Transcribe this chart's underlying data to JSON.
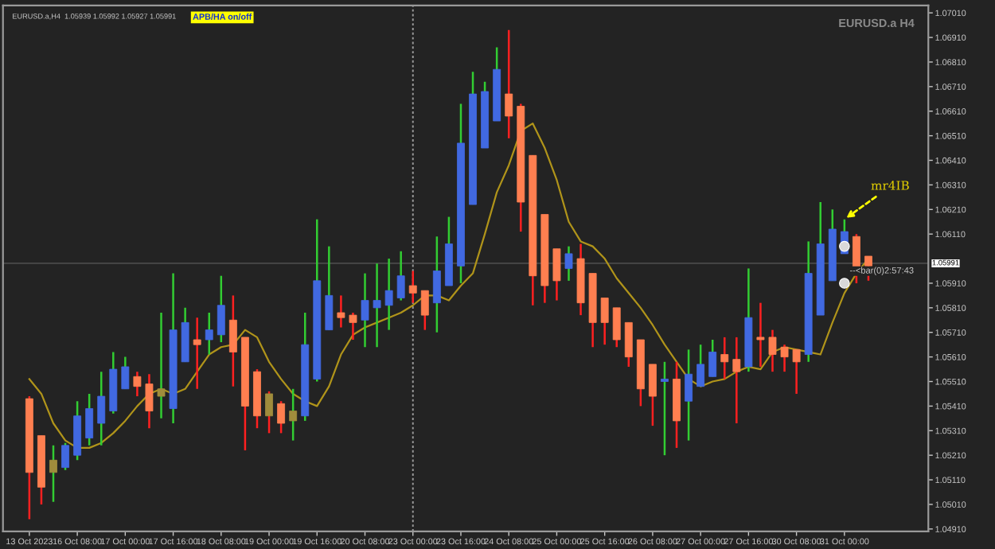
{
  "chart_data": {
    "type": "candlestick",
    "categories": [
      "13 Oct 2023",
      null,
      null,
      null,
      "16 Oct 08:00",
      null,
      null,
      null,
      "17 Oct 00:00",
      null,
      null,
      null,
      "17 Oct 16:00",
      null,
      null,
      null,
      "18 Oct 08:00",
      null,
      null,
      null,
      "19 Oct 00:00",
      null,
      null,
      null,
      "19 Oct 16:00",
      null,
      null,
      null,
      "20 Oct 08:00",
      null,
      null,
      null,
      "23 Oct 00:00",
      null,
      null,
      null,
      "23 Oct 16:00",
      null,
      null,
      null,
      "24 Oct 08:00",
      null,
      null,
      null,
      "25 Oct 00:00",
      null,
      null,
      null,
      "25 Oct 16:00",
      null,
      null,
      null,
      "26 Oct 08:00",
      null,
      null,
      null,
      "27 Oct 00:00",
      null,
      null,
      null,
      "27 Oct 16:00",
      null,
      null,
      null,
      "30 Oct 08:00",
      null,
      null,
      null,
      "31 Oct 00:00",
      null,
      null
    ],
    "ohlc": [
      [
        1.0544,
        1.0545,
        1.0495,
        1.0514
      ],
      [
        1.0529,
        1.0529,
        1.0501,
        1.0508
      ],
      [
        1.0514,
        1.0525,
        1.0502,
        1.0519
      ],
      [
        1.0516,
        1.0526,
        1.0515,
        1.0525
      ],
      [
        1.0521,
        1.0543,
        1.0519,
        1.0537
      ],
      [
        1.0528,
        1.0546,
        1.0525,
        1.054
      ],
      [
        1.0534,
        1.0555,
        1.0525,
        1.0545
      ],
      [
        1.0539,
        1.0563,
        1.0538,
        1.0556
      ],
      [
        1.0548,
        1.0561,
        1.0548,
        1.0557
      ],
      [
        1.0553,
        1.0555,
        1.0545,
        1.0549
      ],
      [
        1.055,
        1.0554,
        1.0532,
        1.0539
      ],
      [
        1.0545,
        1.0579,
        1.0536,
        1.0548
      ],
      [
        1.054,
        1.0595,
        1.0534,
        1.0572
      ],
      [
        1.0559,
        1.0581,
        1.0559,
        1.0575
      ],
      [
        1.0568,
        1.0577,
        1.0548,
        1.0566
      ],
      [
        1.0568,
        1.0579,
        1.0562,
        1.0572
      ],
      [
        1.057,
        1.0594,
        1.0567,
        1.0582
      ],
      [
        1.0576,
        1.0586,
        1.0549,
        1.0563
      ],
      [
        1.0569,
        1.0569,
        1.0523,
        1.0541
      ],
      [
        1.0555,
        1.0556,
        1.0532,
        1.0537
      ],
      [
        1.0546,
        1.0547,
        1.053,
        1.0537
      ],
      [
        1.0542,
        1.0543,
        1.053,
        1.0534
      ],
      [
        1.0535,
        1.0548,
        1.0527,
        1.0539
      ],
      [
        1.0537,
        1.0579,
        1.0535,
        1.0566
      ],
      [
        1.0552,
        1.0617,
        1.0551,
        1.0592
      ],
      [
        1.0572,
        1.0606,
        1.0572,
        1.0586
      ],
      [
        1.0579,
        1.0586,
        1.0573,
        1.0577
      ],
      [
        1.0578,
        1.0579,
        1.0568,
        1.0575
      ],
      [
        1.0576,
        1.0595,
        1.0565,
        1.0584
      ],
      [
        1.0581,
        1.0599,
        1.0565,
        1.0584
      ],
      [
        1.0582,
        1.0601,
        1.0572,
        1.0588
      ],
      [
        1.0585,
        1.0604,
        1.0584,
        1.0594
      ],
      [
        1.059,
        1.0596,
        1.0583,
        1.0587
      ],
      [
        1.0588,
        1.0588,
        1.0572,
        1.0578
      ],
      [
        1.0583,
        1.061,
        1.0571,
        1.0596
      ],
      [
        1.059,
        1.0618,
        1.059,
        1.0607
      ],
      [
        1.0598,
        1.0664,
        1.0591,
        1.0648
      ],
      [
        1.0623,
        1.0677,
        1.0623,
        1.0668
      ],
      [
        1.0646,
        1.0673,
        1.0646,
        1.0669
      ],
      [
        1.0657,
        1.0687,
        1.0657,
        1.0678
      ],
      [
        1.0668,
        1.0694,
        1.065,
        1.0659
      ],
      [
        1.0663,
        1.0664,
        1.0612,
        1.0624
      ],
      [
        1.0643,
        1.0643,
        1.0582,
        1.0594
      ],
      [
        1.0619,
        1.0619,
        1.0583,
        1.059
      ],
      [
        1.0605,
        1.0605,
        1.0584,
        1.0592
      ],
      [
        1.0597,
        1.0606,
        1.0592,
        1.0603
      ],
      [
        1.0601,
        1.0607,
        1.0578,
        1.0583
      ],
      [
        1.0595,
        1.0595,
        1.0565,
        1.0575
      ],
      [
        1.0585,
        1.0585,
        1.0566,
        1.0575
      ],
      [
        1.0581,
        1.0581,
        1.0565,
        1.0568
      ],
      [
        1.0575,
        1.0575,
        1.0557,
        1.0561
      ],
      [
        1.0568,
        1.0568,
        1.0541,
        1.0548
      ],
      [
        1.0558,
        1.0558,
        1.0533,
        1.0545
      ],
      [
        1.0551,
        1.0559,
        1.0521,
        1.0552
      ],
      [
        1.0552,
        1.0559,
        1.0524,
        1.0535
      ],
      [
        1.0543,
        1.0564,
        1.0527,
        1.0554
      ],
      [
        1.0549,
        1.0566,
        1.0549,
        1.0558
      ],
      [
        1.0553,
        1.0568,
        1.0553,
        1.0563
      ],
      [
        1.0562,
        1.0569,
        1.0552,
        1.0559
      ],
      [
        1.056,
        1.0569,
        1.0534,
        1.0555
      ],
      [
        1.0557,
        1.0597,
        1.0555,
        1.0577
      ],
      [
        1.0569,
        1.0583,
        1.0557,
        1.0568
      ],
      [
        1.0569,
        1.0572,
        1.0555,
        1.0562
      ],
      [
        1.0565,
        1.0566,
        1.0555,
        1.0561
      ],
      [
        1.0564,
        1.0564,
        1.0546,
        1.0559
      ],
      [
        1.0562,
        1.0608,
        1.0559,
        1.0595
      ],
      [
        1.0578,
        1.0624,
        1.0578,
        1.0607
      ],
      [
        1.0592,
        1.0621,
        1.0592,
        1.0613
      ],
      [
        1.0603,
        1.0617,
        1.0603,
        1.0612
      ],
      [
        1.061,
        1.0611,
        1.0591,
        1.0597
      ],
      [
        1.0602,
        1.0602,
        1.0592,
        1.0598
      ]
    ],
    "colors": [
      "#ff7f50",
      "#ff7f50",
      "#a08c3c",
      "#4169e1",
      "#4169e1",
      "#4169e1",
      "#4169e1",
      "#4169e1",
      "#4169e1",
      "#ff7f50",
      "#ff7f50",
      "#a08c3c",
      "#4169e1",
      "#4169e1",
      "#ff7f50",
      "#4169e1",
      "#4169e1",
      "#ff7f50",
      "#ff7f50",
      "#ff7f50",
      "#a08c3c",
      "#ff7f50",
      "#a08c3c",
      "#4169e1",
      "#4169e1",
      "#4169e1",
      "#ff7f50",
      "#ff7f50",
      "#4169e1",
      "#4169e1",
      "#4169e1",
      "#4169e1",
      "#ff7f50",
      "#ff7f50",
      "#4169e1",
      "#4169e1",
      "#4169e1",
      "#4169e1",
      "#4169e1",
      "#4169e1",
      "#ff7f50",
      "#ff7f50",
      "#ff7f50",
      "#ff7f50",
      "#ff7f50",
      "#4169e1",
      "#ff7f50",
      "#ff7f50",
      "#ff7f50",
      "#ff7f50",
      "#ff7f50",
      "#ff7f50",
      "#ff7f50",
      "#4169e1",
      "#ff7f50",
      "#4169e1",
      "#4169e1",
      "#4169e1",
      "#ff7f50",
      "#ff7f50",
      "#4169e1",
      "#ff7f50",
      "#ff7f50",
      "#ff7f50",
      "#ff7f50",
      "#4169e1",
      "#4169e1",
      "#4169e1",
      "#4169e1",
      "#ff7f50",
      "#ff7f50"
    ],
    "series": [
      {
        "type": "line",
        "color": "#b0941a",
        "values": [
          1.0552,
          1.0546,
          1.0534,
          1.0527,
          1.0524,
          1.0524,
          1.0526,
          1.053,
          1.0535,
          1.0541,
          1.0546,
          1.0548,
          1.0546,
          1.0548,
          1.0555,
          1.0562,
          1.0565,
          1.0566,
          1.0572,
          1.0569,
          1.0559,
          1.0552,
          1.0546,
          1.0543,
          1.0541,
          1.0549,
          1.0562,
          1.057,
          1.0573,
          1.0575,
          1.0577,
          1.0579,
          1.0582,
          1.0586,
          1.0586,
          1.0584,
          1.059,
          1.0595,
          1.0611,
          1.0628,
          1.0639,
          1.0653,
          1.0656,
          1.0646,
          1.0633,
          1.0616,
          1.0608,
          1.0606,
          1.0601,
          1.0593,
          1.0587,
          1.0581,
          1.0574,
          1.0566,
          1.0559,
          1.0552,
          1.0549,
          1.0551,
          1.0552,
          1.0555,
          1.0557,
          1.0556,
          1.0563,
          1.0565,
          1.0564,
          1.0563,
          1.0562,
          1.0575,
          1.0587,
          1.0595,
          1.0601
        ]
      },
      {
        "type": "scatter",
        "color": "#d9d9d9",
        "marker": "circle",
        "values": [
          null,
          null,
          null,
          null,
          null,
          null,
          null,
          null,
          null,
          null,
          null,
          null,
          null,
          null,
          null,
          null,
          null,
          null,
          null,
          null,
          null,
          null,
          null,
          null,
          null,
          null,
          null,
          null,
          null,
          null,
          null,
          null,
          null,
          null,
          null,
          null,
          null,
          null,
          null,
          null,
          null,
          null,
          null,
          null,
          null,
          null,
          null,
          null,
          null,
          null,
          null,
          null,
          null,
          null,
          null,
          null,
          null,
          null,
          null,
          null,
          null,
          null,
          null,
          null,
          null,
          null,
          null,
          null,
          1.0606,
          null,
          null
        ]
      },
      {
        "type": "scatter",
        "color": "#d9d9d9",
        "marker": "circle",
        "values": [
          null,
          null,
          null,
          null,
          null,
          null,
          null,
          null,
          null,
          null,
          null,
          null,
          null,
          null,
          null,
          null,
          null,
          null,
          null,
          null,
          null,
          null,
          null,
          null,
          null,
          null,
          null,
          null,
          null,
          null,
          null,
          null,
          null,
          null,
          null,
          null,
          null,
          null,
          null,
          null,
          null,
          null,
          null,
          null,
          null,
          null,
          null,
          null,
          null,
          null,
          null,
          null,
          null,
          null,
          null,
          null,
          null,
          null,
          null,
          null,
          null,
          null,
          null,
          null,
          null,
          null,
          null,
          null,
          1.0591,
          null,
          null
        ]
      }
    ],
    "ylim": [
      1.049,
      1.0704
    ],
    "yticks": [
      {
        "value": 1.0491,
        "label": "1.04910"
      },
      {
        "value": 1.0501,
        "label": "1.05010"
      },
      {
        "value": 1.0511,
        "label": "1.05110"
      },
      {
        "value": 1.0521,
        "label": "1.05210"
      },
      {
        "value": 1.0531,
        "label": "1.05310"
      },
      {
        "value": 1.0541,
        "label": "1.05410"
      },
      {
        "value": 1.0551,
        "label": "1.05510"
      },
      {
        "value": 1.0561,
        "label": "1.05610"
      },
      {
        "value": 1.0571,
        "label": "1.05710"
      },
      {
        "value": 1.0581,
        "label": "1.05810"
      },
      {
        "value": 1.0591,
        "label": "1.05910"
      },
      {
        "value": 1.0611,
        "label": "1.06110"
      },
      {
        "value": 1.0621,
        "label": "1.06210"
      },
      {
        "value": 1.0631,
        "label": "1.06310"
      },
      {
        "value": 1.0641,
        "label": "1.06410"
      },
      {
        "value": 1.0651,
        "label": "1.06510"
      },
      {
        "value": 1.0661,
        "label": "1.06610"
      },
      {
        "value": 1.0671,
        "label": "1.06710"
      },
      {
        "value": 1.0681,
        "label": "1.06810"
      },
      {
        "value": 1.0691,
        "label": "1.06910"
      },
      {
        "value": 1.0701,
        "label": "1.07010"
      }
    ],
    "ref_lines": [
      {
        "axis": "y",
        "value": 1.05991,
        "label": "1.05991",
        "color": "#4a4a4a",
        "line_style": "solid"
      },
      {
        "axis": "x",
        "value": "23 Oct 00:00",
        "color": "#9a9a9a",
        "line_style": "dashed"
      }
    ],
    "annotations": [
      "EURUSD.a,H4  1.05939 1.05992 1.05927 1.05991",
      "APB/HA on/off",
      "EURUSD.a H4",
      {
        "text": "mr4IB",
        "x": "31 Oct 00:00",
        "y": 1.0617
      },
      "--<bar(0)2:57:43"
    ],
    "grid": false,
    "legend": false
  }
}
